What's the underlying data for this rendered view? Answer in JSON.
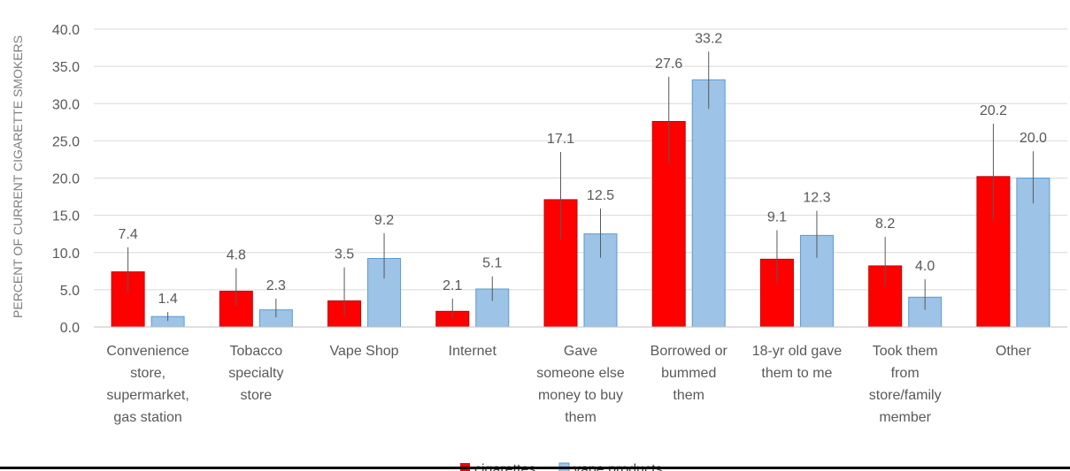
{
  "chart_data": {
    "type": "bar",
    "ylabel": "PERCENT OF CURRENT CIGARETTE SMOKERS",
    "ylim": [
      0,
      40
    ],
    "yticks": [
      "0.0",
      "5.0",
      "10.0",
      "15.0",
      "20.0",
      "25.0",
      "30.0",
      "35.0",
      "40.0"
    ],
    "grid": true,
    "legend_position": "bottom",
    "categories": [
      [
        "Convenience",
        "store,",
        "supermarket,",
        "gas station"
      ],
      [
        "Tobacco",
        "specialty",
        "store"
      ],
      [
        "Vape Shop"
      ],
      [
        "Internet"
      ],
      [
        "Gave",
        "someone else",
        "money to buy",
        "them"
      ],
      [
        "Borrowed or",
        "bummed",
        "them"
      ],
      [
        "18-yr old gave",
        "them to me"
      ],
      [
        "Took them",
        "from",
        "store/family",
        "member"
      ],
      [
        "Other"
      ]
    ],
    "series": [
      {
        "name": "cigarettes",
        "color": "#ff0000",
        "values": [
          7.4,
          4.8,
          3.5,
          2.1,
          17.1,
          27.6,
          9.1,
          8.2,
          20.2
        ],
        "labels": [
          "7.4",
          "4.8",
          "3.5",
          "2.1",
          "17.1",
          "27.6",
          "9.1",
          "8.2",
          "20.2"
        ],
        "error_low": [
          4.6,
          2.8,
          1.5,
          1.1,
          11.8,
          22.0,
          6.0,
          5.5,
          14.3
        ],
        "error_high": [
          10.7,
          7.9,
          8.0,
          3.8,
          23.5,
          33.6,
          13.0,
          12.1,
          27.3
        ]
      },
      {
        "name": "vape products",
        "color": "#9dc3e6",
        "values": [
          1.4,
          2.3,
          9.2,
          5.1,
          12.5,
          33.2,
          12.3,
          4.0,
          20.0
        ],
        "labels": [
          "1.4",
          "2.3",
          "9.2",
          "5.1",
          "12.5",
          "33.2",
          "12.3",
          "4.0",
          "20.0"
        ],
        "error_low": [
          0.8,
          1.3,
          6.5,
          3.5,
          9.3,
          29.3,
          9.3,
          2.3,
          16.6
        ],
        "error_high": [
          2.0,
          3.8,
          12.6,
          6.8,
          15.9,
          37.0,
          15.6,
          6.4,
          23.6
        ]
      }
    ]
  }
}
